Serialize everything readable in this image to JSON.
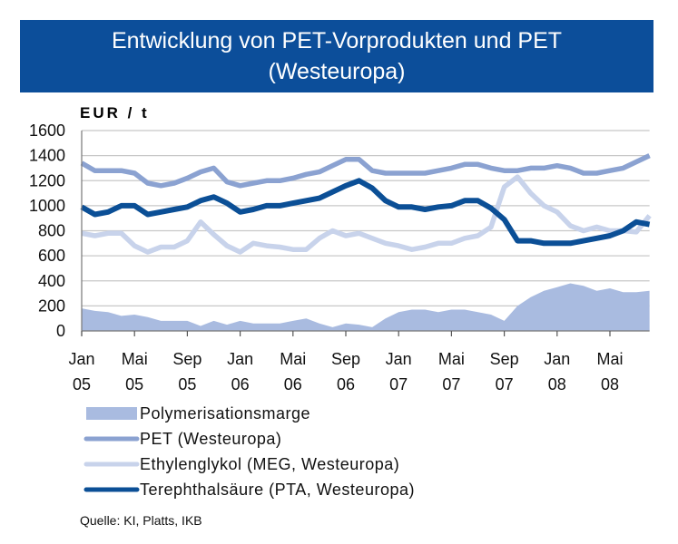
{
  "chart_data": {
    "type": "line",
    "title": "Entwicklung von PET-Vorprodukten und PET",
    "subtitle": "(Westeuropa)",
    "ylabel": "EUR / t",
    "xlabel": "",
    "ylim": [
      0,
      1600
    ],
    "yticks": [
      "0",
      "200",
      "400",
      "600",
      "800",
      "1000",
      "1200",
      "1400",
      "1600"
    ],
    "grid": true,
    "x_start": "Jan 05",
    "x_end": "Aug 08",
    "xticks": [
      {
        "month": "Jan",
        "year": "05"
      },
      {
        "month": "Mai",
        "year": "05"
      },
      {
        "month": "Sep",
        "year": "05"
      },
      {
        "month": "Jan",
        "year": "06"
      },
      {
        "month": "Mai",
        "year": "06"
      },
      {
        "month": "Sep",
        "year": "06"
      },
      {
        "month": "Jan",
        "year": "07"
      },
      {
        "month": "Mai",
        "year": "07"
      },
      {
        "month": "Sep",
        "year": "07"
      },
      {
        "month": "Jan",
        "year": "08"
      },
      {
        "month": "Mai",
        "year": "08"
      }
    ],
    "legend_position": "bottom",
    "series": [
      {
        "name": "Polymerisationsmarge",
        "type": "area",
        "color": "#a9bbe0",
        "values": [
          180,
          160,
          150,
          120,
          130,
          110,
          80,
          80,
          80,
          40,
          80,
          50,
          80,
          60,
          60,
          60,
          80,
          100,
          60,
          30,
          60,
          50,
          30,
          100,
          150,
          170,
          170,
          150,
          170,
          170,
          150,
          130,
          80,
          200,
          270,
          320,
          350,
          380,
          360,
          320,
          340,
          310,
          310,
          320
        ]
      },
      {
        "name": "PET (Westeuropa)",
        "type": "line",
        "color": "#8ba2d1",
        "values": [
          1340,
          1280,
          1280,
          1280,
          1260,
          1180,
          1160,
          1180,
          1220,
          1270,
          1300,
          1190,
          1160,
          1180,
          1200,
          1200,
          1220,
          1250,
          1270,
          1320,
          1370,
          1370,
          1280,
          1260,
          1260,
          1260,
          1260,
          1280,
          1300,
          1330,
          1330,
          1300,
          1280,
          1280,
          1300,
          1300,
          1320,
          1300,
          1260,
          1260,
          1280,
          1300,
          1350,
          1400
        ]
      },
      {
        "name": "Ethylenglykol (MEG, Westeuropa)",
        "type": "line",
        "color": "#c8d3eb",
        "values": [
          780,
          760,
          780,
          780,
          680,
          630,
          670,
          670,
          720,
          870,
          770,
          680,
          630,
          700,
          680,
          670,
          650,
          650,
          740,
          800,
          760,
          780,
          740,
          700,
          680,
          650,
          670,
          700,
          700,
          740,
          760,
          830,
          1150,
          1230,
          1100,
          1000,
          950,
          840,
          800,
          830,
          800,
          800,
          790,
          920
        ]
      },
      {
        "name": "Terephthalsäure (PTA, Westeuropa)",
        "type": "line",
        "color": "#0b4f96",
        "values": [
          990,
          930,
          950,
          1000,
          1000,
          930,
          950,
          970,
          990,
          1040,
          1070,
          1020,
          950,
          970,
          1000,
          1000,
          1020,
          1040,
          1060,
          1110,
          1160,
          1200,
          1140,
          1040,
          990,
          990,
          970,
          990,
          1000,
          1040,
          1040,
          980,
          890,
          720,
          720,
          700,
          700,
          700,
          720,
          740,
          760,
          800,
          870,
          850
        ]
      }
    ],
    "source": "Quelle: KI, Platts, IKB"
  },
  "colors": {
    "title_bar": "#0c4e9a",
    "grid": "#c8c8c8"
  }
}
